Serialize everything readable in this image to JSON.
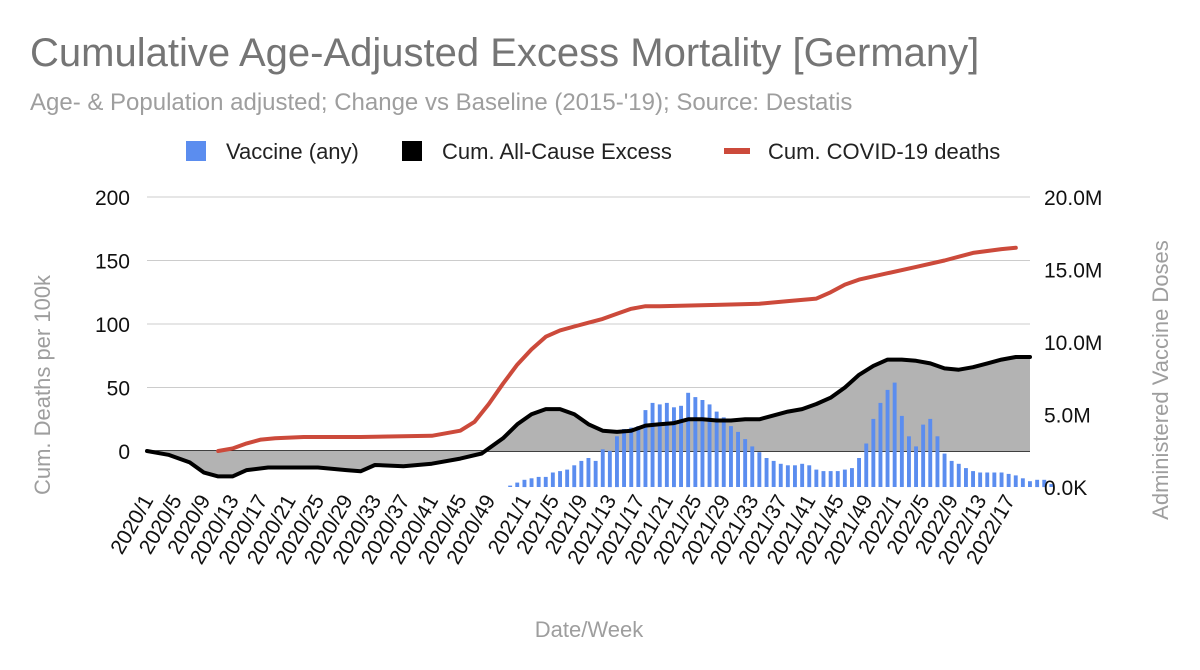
{
  "chart_data": {
    "type": "combo",
    "title": "Cumulative Age-Adjusted Excess Mortality [Germany]",
    "subtitle": "Age- & Population adjusted; Change vs Baseline (2015-'19); Source: Destatis",
    "xlabel": "Date/Week",
    "ylabel_left": "Cum. Deaths per 100k",
    "ylabel_right": "Administered Vaccine Doses",
    "ylim_left": [
      -30,
      200
    ],
    "ylim_right": [
      0,
      20000000
    ],
    "left_ticks": [
      "200",
      "150",
      "100",
      "50",
      "0"
    ],
    "left_tick_values": [
      200,
      150,
      100,
      50,
      0
    ],
    "right_ticks": [
      "20.0M",
      "15.0M",
      "10.0M",
      "5.0M",
      "0.0K"
    ],
    "right_tick_values": [
      20000000,
      15000000,
      10000000,
      5000000,
      0
    ],
    "x_tick_labels": [
      "2020/1",
      "2020/5",
      "2020/9",
      "2020/13",
      "2020/17",
      "2020/21",
      "2020/25",
      "2020/29",
      "2020/33",
      "2020/37",
      "2020/41",
      "2020/45",
      "2020/49",
      "2021/1",
      "2021/5",
      "2021/9",
      "2021/13",
      "2021/17",
      "2021/21",
      "2021/25",
      "2021/29",
      "2021/33",
      "2021/37",
      "2021/41",
      "2021/45",
      "2021/49",
      "2022/1",
      "2022/5",
      "2022/9",
      "2022/13",
      "2022/17"
    ],
    "x_tick_weeks": [
      0,
      4,
      8,
      12,
      16,
      20,
      24,
      28,
      32,
      36,
      40,
      44,
      48,
      53,
      57,
      61,
      65,
      69,
      73,
      77,
      81,
      85,
      89,
      93,
      97,
      101,
      105,
      109,
      113,
      117,
      121
    ],
    "grid": true,
    "legend_position": "top",
    "series": [
      {
        "name": "Vaccine (any)",
        "type": "bar",
        "axis": "right",
        "color": "#5b8def",
        "start_week": 51,
        "values": [
          100000,
          300000,
          500000,
          600000,
          700000,
          700000,
          1000000,
          1100000,
          1200000,
          1500000,
          1800000,
          2000000,
          1800000,
          2600000,
          2500000,
          3500000,
          4000000,
          4100000,
          4200000,
          5300000,
          5800000,
          5700000,
          5800000,
          5500000,
          5600000,
          6500000,
          6200000,
          6000000,
          5700000,
          5200000,
          4800000,
          4200000,
          3800000,
          3300000,
          2800000,
          2400000,
          2000000,
          1800000,
          1600000,
          1500000,
          1500000,
          1600000,
          1500000,
          1200000,
          1100000,
          1100000,
          1100000,
          1200000,
          1300000,
          2000000,
          3000000,
          4700000,
          5800000,
          6700000,
          7200000,
          4900000,
          3500000,
          2800000,
          4300000,
          4700000,
          3500000,
          2300000,
          1800000,
          1600000,
          1300000,
          1100000,
          1000000,
          1000000,
          1000000,
          1000000,
          900000,
          800000,
          600000,
          400000,
          500000,
          500000,
          200000
        ]
      },
      {
        "name": "Cum. All-Cause Excess",
        "type": "area",
        "axis": "left",
        "color": "#000000",
        "fill": "#b3b3b3",
        "start_week": 0,
        "values": [
          [
            0,
            0
          ],
          [
            3,
            -3
          ],
          [
            6,
            -9
          ],
          [
            8,
            -17
          ],
          [
            10,
            -20
          ],
          [
            12,
            -20
          ],
          [
            14,
            -15
          ],
          [
            17,
            -13
          ],
          [
            20,
            -13
          ],
          [
            24,
            -13
          ],
          [
            28,
            -15
          ],
          [
            30,
            -16
          ],
          [
            32,
            -11
          ],
          [
            36,
            -12
          ],
          [
            40,
            -10
          ],
          [
            44,
            -6
          ],
          [
            47,
            -2
          ],
          [
            50,
            10
          ],
          [
            52,
            21
          ],
          [
            54,
            29
          ],
          [
            56,
            33
          ],
          [
            58,
            33
          ],
          [
            60,
            29
          ],
          [
            62,
            21
          ],
          [
            64,
            16
          ],
          [
            66,
            15
          ],
          [
            68,
            16
          ],
          [
            70,
            20
          ],
          [
            72,
            21
          ],
          [
            74,
            22
          ],
          [
            76,
            25
          ],
          [
            78,
            25
          ],
          [
            80,
            24
          ],
          [
            82,
            24
          ],
          [
            84,
            25
          ],
          [
            86,
            25
          ],
          [
            88,
            28
          ],
          [
            90,
            31
          ],
          [
            92,
            33
          ],
          [
            94,
            37
          ],
          [
            96,
            42
          ],
          [
            98,
            50
          ],
          [
            100,
            60
          ],
          [
            102,
            67
          ],
          [
            104,
            72
          ],
          [
            106,
            72
          ],
          [
            108,
            71
          ],
          [
            110,
            69
          ],
          [
            112,
            65
          ],
          [
            114,
            64
          ],
          [
            116,
            66
          ],
          [
            118,
            69
          ],
          [
            120,
            72
          ],
          [
            122,
            74
          ],
          [
            124,
            74
          ]
        ]
      },
      {
        "name": "Cum. COVID-19 deaths",
        "type": "line",
        "axis": "left",
        "color": "#cc4a3b",
        "start_week": 10,
        "values": [
          [
            10,
            0
          ],
          [
            12,
            2
          ],
          [
            14,
            6
          ],
          [
            16,
            9
          ],
          [
            18,
            10
          ],
          [
            22,
            11
          ],
          [
            30,
            11
          ],
          [
            40,
            12
          ],
          [
            44,
            16
          ],
          [
            46,
            23
          ],
          [
            48,
            37
          ],
          [
            50,
            53
          ],
          [
            52,
            68
          ],
          [
            54,
            80
          ],
          [
            56,
            90
          ],
          [
            58,
            95
          ],
          [
            60,
            98
          ],
          [
            62,
            101
          ],
          [
            64,
            104
          ],
          [
            66,
            108
          ],
          [
            68,
            112
          ],
          [
            70,
            114
          ],
          [
            72,
            114
          ],
          [
            80,
            115
          ],
          [
            86,
            116
          ],
          [
            90,
            118
          ],
          [
            94,
            120
          ],
          [
            96,
            125
          ],
          [
            98,
            131
          ],
          [
            100,
            135
          ],
          [
            104,
            140
          ],
          [
            108,
            145
          ],
          [
            112,
            150
          ],
          [
            116,
            156
          ],
          [
            120,
            159
          ],
          [
            122,
            160
          ]
        ]
      }
    ]
  }
}
